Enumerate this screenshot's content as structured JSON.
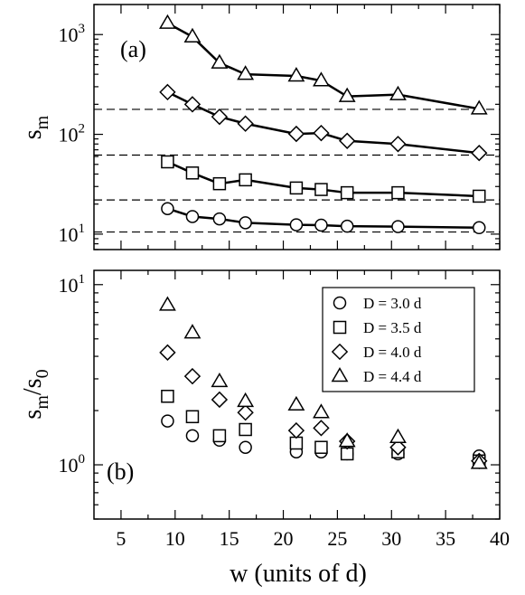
{
  "chart_data": [
    {
      "panel": "a",
      "type": "line",
      "panel_label": "(a)",
      "ylabel": "s_m",
      "ylabel_main": "s",
      "ylabel_sub": "m",
      "yscale": "log",
      "ylim": [
        7,
        2000
      ],
      "xlim": [
        2.5,
        40
      ],
      "yticks": [
        {
          "value": 10,
          "base": "10",
          "exp": "1"
        },
        {
          "value": 100,
          "base": "10",
          "exp": "2"
        },
        {
          "value": 1000,
          "base": "10",
          "exp": "3"
        }
      ],
      "x": [
        9.3,
        11.6,
        14.1,
        16.5,
        21.2,
        23.5,
        25.9,
        30.6,
        38.1
      ],
      "series": [
        {
          "marker": "circle",
          "values": [
            18,
            15,
            14.2,
            13,
            12.4,
            12.3,
            12,
            11.9,
            11.6
          ],
          "reference": 10.5
        },
        {
          "marker": "square",
          "values": [
            53,
            41,
            32,
            35,
            29,
            28,
            26,
            26,
            24
          ],
          "reference": 22
        },
        {
          "marker": "diamond",
          "values": [
            265,
            200,
            150,
            128,
            101,
            103,
            86,
            80,
            65
          ],
          "reference": 62
        },
        {
          "marker": "triangle",
          "values": [
            1300,
            950,
            520,
            400,
            385,
            345,
            240,
            250,
            180
          ],
          "reference": 178
        }
      ]
    },
    {
      "panel": "b",
      "type": "scatter",
      "panel_label": "(b)",
      "ylabel": "s_m/s_0",
      "ylabel_main": "s",
      "ylabel_sub": "m",
      "ylabel_mid": "/s",
      "ylabel_sub2": "0",
      "xlabel": "w (units of d)",
      "yscale": "log",
      "ylim": [
        0.5,
        12
      ],
      "xlim": [
        2.5,
        40
      ],
      "yticks": [
        {
          "value": 1,
          "base": "10",
          "exp": "0"
        },
        {
          "value": 10,
          "base": "10",
          "exp": "1"
        }
      ],
      "xticks": [
        "5",
        "10",
        "15",
        "20",
        "25",
        "30",
        "35",
        "40"
      ],
      "x": [
        9.3,
        11.6,
        14.1,
        16.5,
        21.2,
        23.5,
        25.9,
        30.6,
        38.1
      ],
      "series": [
        {
          "name": "D = 3.0 d",
          "marker": "circle",
          "values": [
            1.75,
            1.45,
            1.37,
            1.25,
            1.18,
            1.18,
            1.15,
            1.15,
            1.12
          ]
        },
        {
          "name": "D = 3.5 d",
          "marker": "square",
          "values": [
            2.4,
            1.85,
            1.45,
            1.57,
            1.32,
            1.25,
            1.15,
            1.18,
            1.05
          ]
        },
        {
          "name": "D = 4.0 d",
          "marker": "diamond",
          "values": [
            4.2,
            3.1,
            2.3,
            1.95,
            1.55,
            1.6,
            1.35,
            1.25,
            1.05
          ]
        },
        {
          "name": "D = 4.4 d",
          "marker": "triangle",
          "values": [
            7.7,
            5.4,
            2.9,
            2.25,
            2.15,
            1.95,
            1.35,
            1.42,
            1.02
          ]
        }
      ],
      "legend_position": "top-right"
    }
  ]
}
